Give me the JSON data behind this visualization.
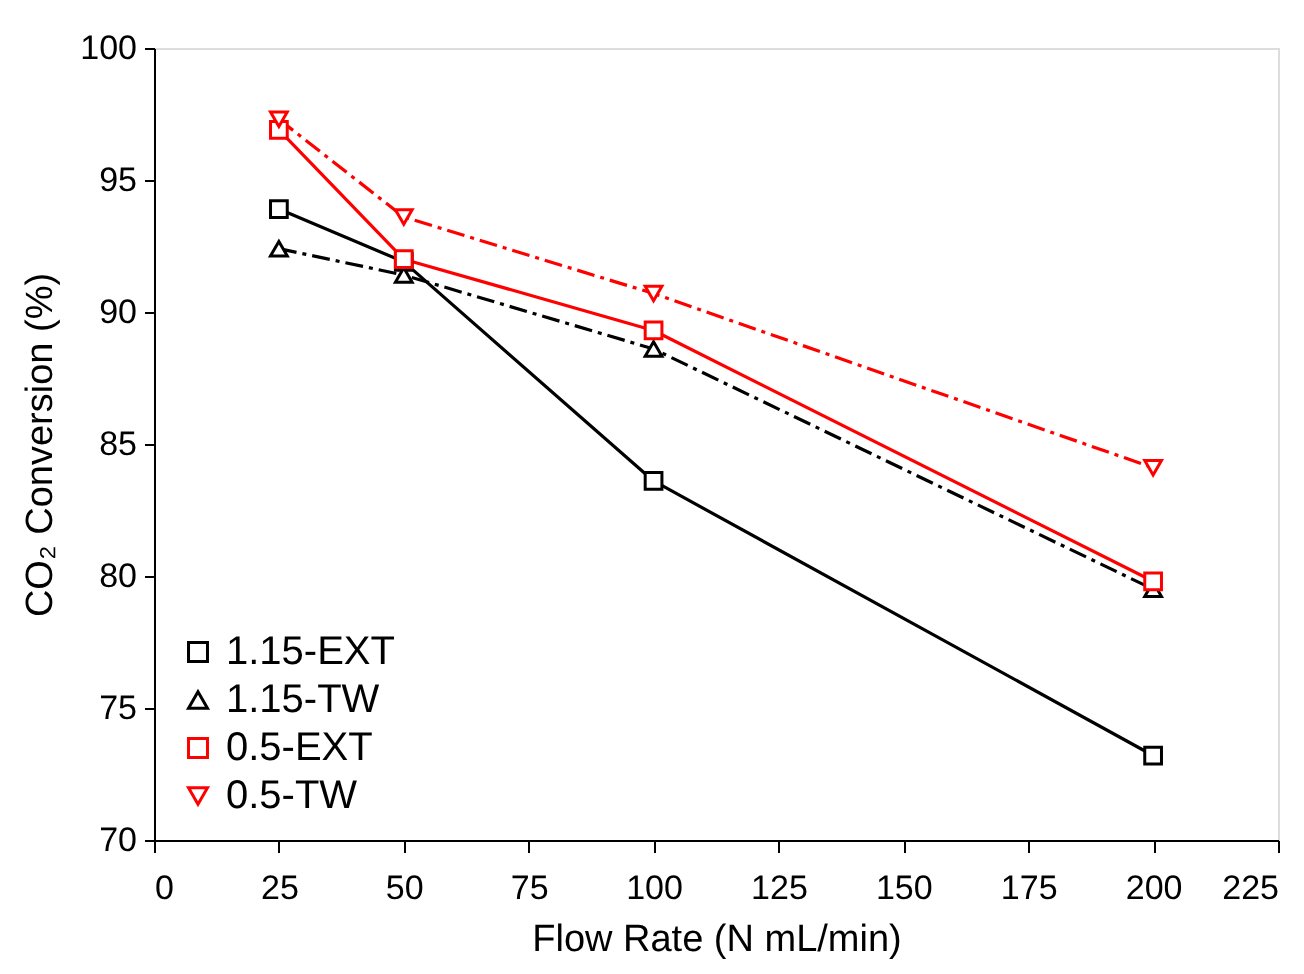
{
  "chart_data": {
    "type": "line",
    "xlabel": "Flow Rate (N mL/min)",
    "ylabel": "CO₂ Conversion (%)",
    "x": [
      25,
      50,
      100,
      200
    ],
    "xlim": [
      0,
      225
    ],
    "xticks": [
      0,
      25,
      50,
      75,
      100,
      125,
      150,
      175,
      200,
      225
    ],
    "ylim": [
      70,
      100
    ],
    "yticks": [
      70,
      75,
      80,
      85,
      90,
      95,
      100
    ],
    "grid": false,
    "legend": "bottom left",
    "series": [
      {
        "name": "1.15-EXT",
        "color": "#000000",
        "values": [
          93.9,
          91.9,
          83.6,
          73.2
        ],
        "marker": "square",
        "line_style": "solid"
      },
      {
        "name": "1.15-TW",
        "color": "#000000",
        "values": [
          92.4,
          91.4,
          88.6,
          79.5
        ],
        "marker": "triangle",
        "line_style": "dashed"
      },
      {
        "name": "0.5-EXT",
        "color": "#ff0000",
        "values": [
          96.9,
          92.0,
          89.3,
          79.8
        ],
        "marker": "square",
        "line_style": "solid"
      },
      {
        "name": "0.5-TW",
        "color": "#ff0000",
        "values": [
          97.3,
          93.6,
          90.7,
          84.1
        ],
        "marker": "triangle-down",
        "line_style": "dashed"
      }
    ]
  }
}
